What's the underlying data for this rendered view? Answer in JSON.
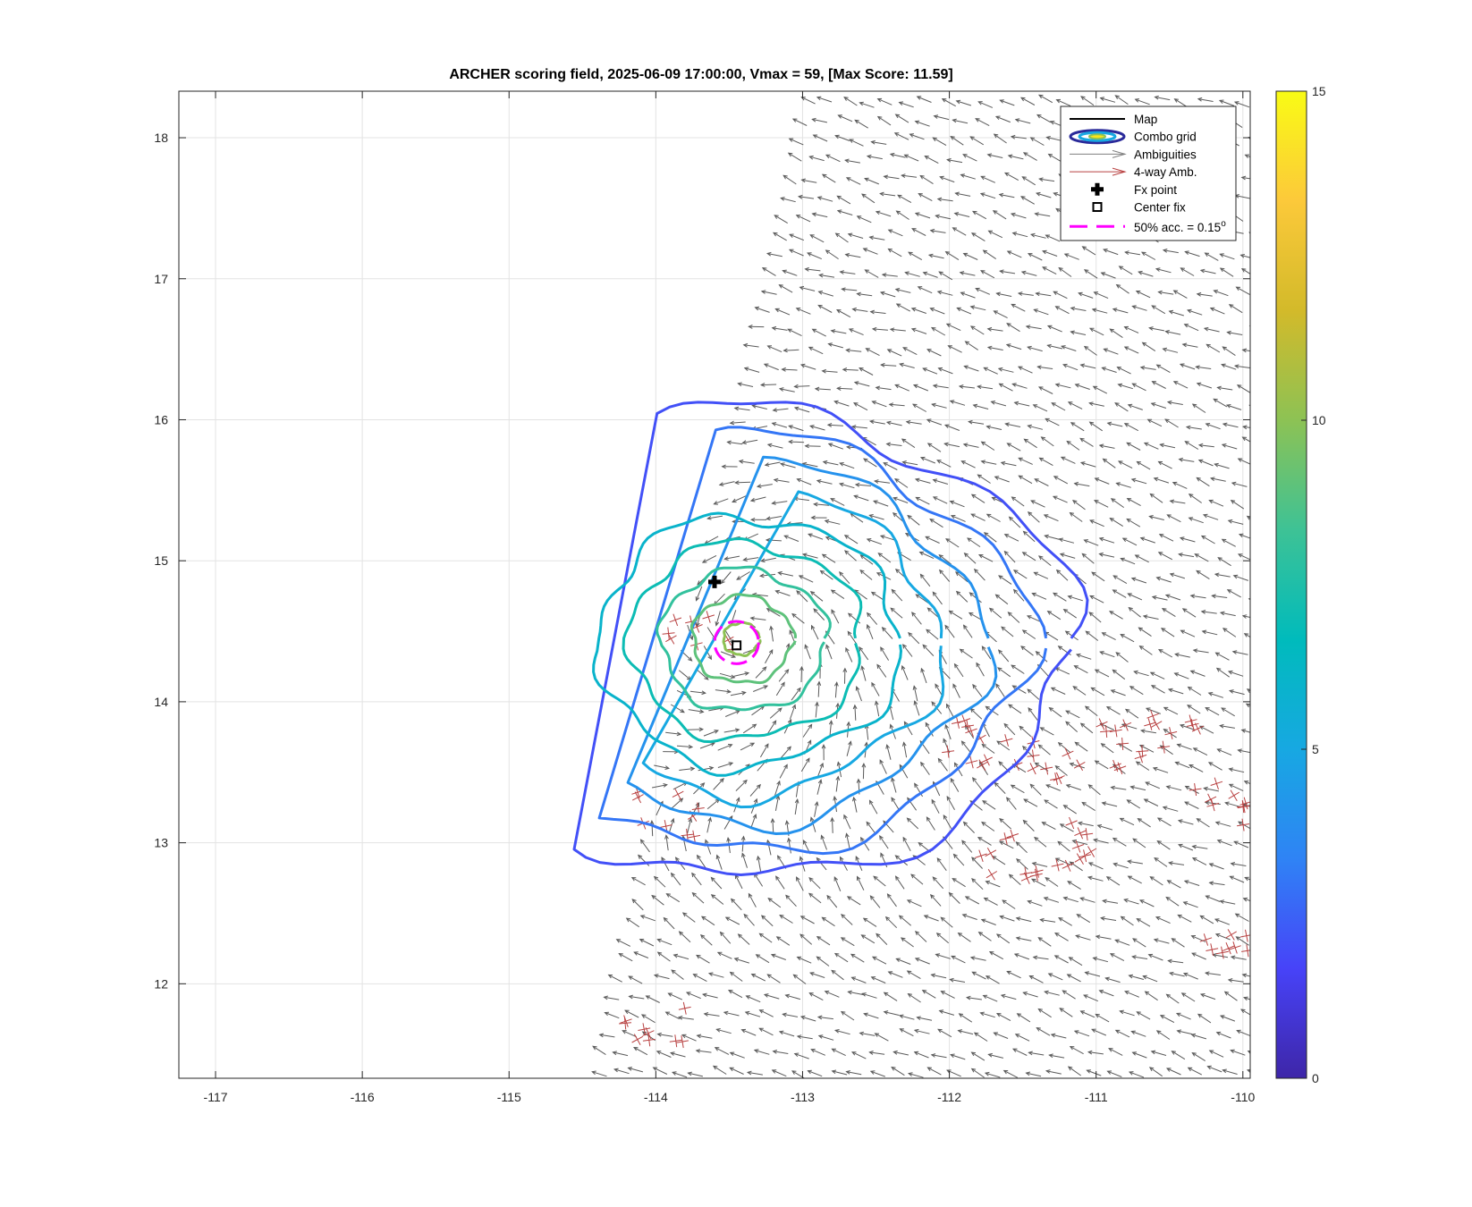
{
  "chart_data": {
    "type": "contour",
    "title": "ARCHER scoring field, 2025-06-09 17:00:00, Vmax = 59, [Max Score: 11.59]",
    "xlabel": "",
    "ylabel": "",
    "xlim": [
      -117.25,
      -109.95
    ],
    "ylim": [
      11.33,
      18.33
    ],
    "xticks": [
      -117,
      -116,
      -115,
      -114,
      -113,
      -112,
      -111,
      -110
    ],
    "yticks": [
      12,
      13,
      14,
      15,
      16,
      17,
      18
    ],
    "xtick_labels": [
      "-117",
      "-116",
      "-115",
      "-114",
      "-113",
      "-112",
      "-111",
      "-110"
    ],
    "ytick_labels": [
      "12",
      "13",
      "14",
      "15",
      "16",
      "17",
      "18"
    ],
    "grid": true,
    "colorbar": {
      "min": 0,
      "max": 15,
      "ticks": [
        0,
        5,
        10,
        15
      ],
      "tick_labels": [
        "0",
        "5",
        "10",
        "15"
      ],
      "colormap": [
        "#3e26a8",
        "#4743f8",
        "#2f83f5",
        "#17a8e2",
        "#00bbbc",
        "#3ec295",
        "#8dc254",
        "#d3ba2a",
        "#fcc93a",
        "#f9fb15"
      ]
    },
    "contour_levels": [
      2,
      3,
      4,
      5,
      6,
      7,
      8,
      9,
      10
    ],
    "center_fix": {
      "lon": -113.45,
      "lat": 14.4
    },
    "fx_point": {
      "lon": -113.6,
      "lat": 14.85
    },
    "acc_circle": {
      "lon": -113.45,
      "lat": 14.42,
      "radius_deg": 0.15
    },
    "vortex_center": {
      "lon": -113.35,
      "lat": 14.5
    },
    "swath_edge": [
      [
        -114.4,
        11.33
      ],
      [
        -112.95,
        18.33
      ]
    ],
    "four_way_clusters": [
      {
        "lon": -111.8,
        "lat": 13.7
      },
      {
        "lon": -111.4,
        "lat": 13.6
      },
      {
        "lon": -110.9,
        "lat": 13.7
      },
      {
        "lon": -110.5,
        "lat": 13.8
      },
      {
        "lon": -110.2,
        "lat": 13.3
      },
      {
        "lon": -111.6,
        "lat": 12.9
      },
      {
        "lon": -111.2,
        "lat": 13.0
      },
      {
        "lon": -113.9,
        "lat": 13.2
      },
      {
        "lon": -114.0,
        "lat": 11.75
      },
      {
        "lon": -110.05,
        "lat": 12.2
      },
      {
        "lon": -113.7,
        "lat": 14.5
      }
    ]
  },
  "legend": {
    "items": [
      {
        "label": "Map",
        "color": "#000000",
        "style": "line"
      },
      {
        "label": "Combo grid",
        "color": "#2a2a9a",
        "style": "ellipse"
      },
      {
        "label": "Ambiguities",
        "color": "#7f7f7f",
        "style": "arrow"
      },
      {
        "label": "4-way Amb.",
        "color": "#b84040",
        "style": "arrow"
      },
      {
        "label": "Fx point",
        "color": "#000000",
        "style": "plus"
      },
      {
        "label": "Center fix",
        "color": "#000000",
        "style": "square"
      },
      {
        "label": "50% acc. = 0.15",
        "color": "#ff00ff",
        "style": "dash"
      }
    ],
    "degree_symbol": "o"
  }
}
